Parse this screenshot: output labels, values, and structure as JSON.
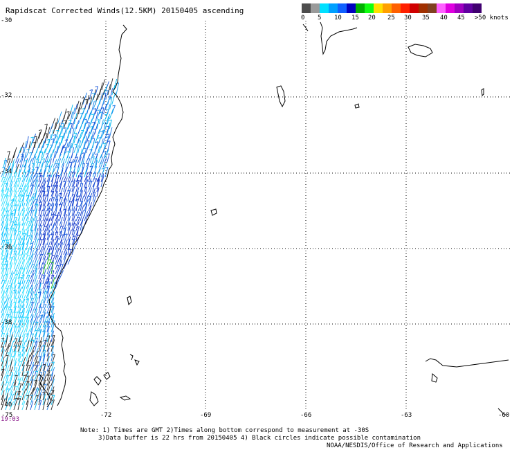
{
  "title": "Rapidscat Corrected Winds(12.5KM) 20150405 ascending",
  "colorbar": {
    "colors": [
      "#4d4d4d",
      "#9a9a9a",
      "#00e0ff",
      "#00a0ff",
      "#1060ff",
      "#0000c0",
      "#00b000",
      "#10ff10",
      "#ffe000",
      "#ffa000",
      "#ff6000",
      "#ff2000",
      "#d00000",
      "#a03000",
      "#804020",
      "#ff60ff",
      "#e000e0",
      "#a000c0",
      "#6000a0",
      "#400070"
    ],
    "labels": [
      "0",
      "5",
      "10",
      "15",
      "20",
      "25",
      "30",
      "35",
      "40",
      "45",
      ">50 knots"
    ]
  },
  "lat_labels": [
    "-30",
    "-32",
    "-34",
    "-36",
    "-38",
    "-40"
  ],
  "lon_labels": [
    "-75",
    "-72",
    "-69",
    "-66",
    "-63",
    "-60"
  ],
  "timestamp": "19:03",
  "notes": [
    "Note: 1) Times are GMT 2)Times along bottom correspond to measurement at -30S",
    "3)Data buffer is 22 hrs from 20150405 4) Black circles indicate possible contamination",
    "NOAA/NESDIS/Office of Research and Applications"
  ]
}
